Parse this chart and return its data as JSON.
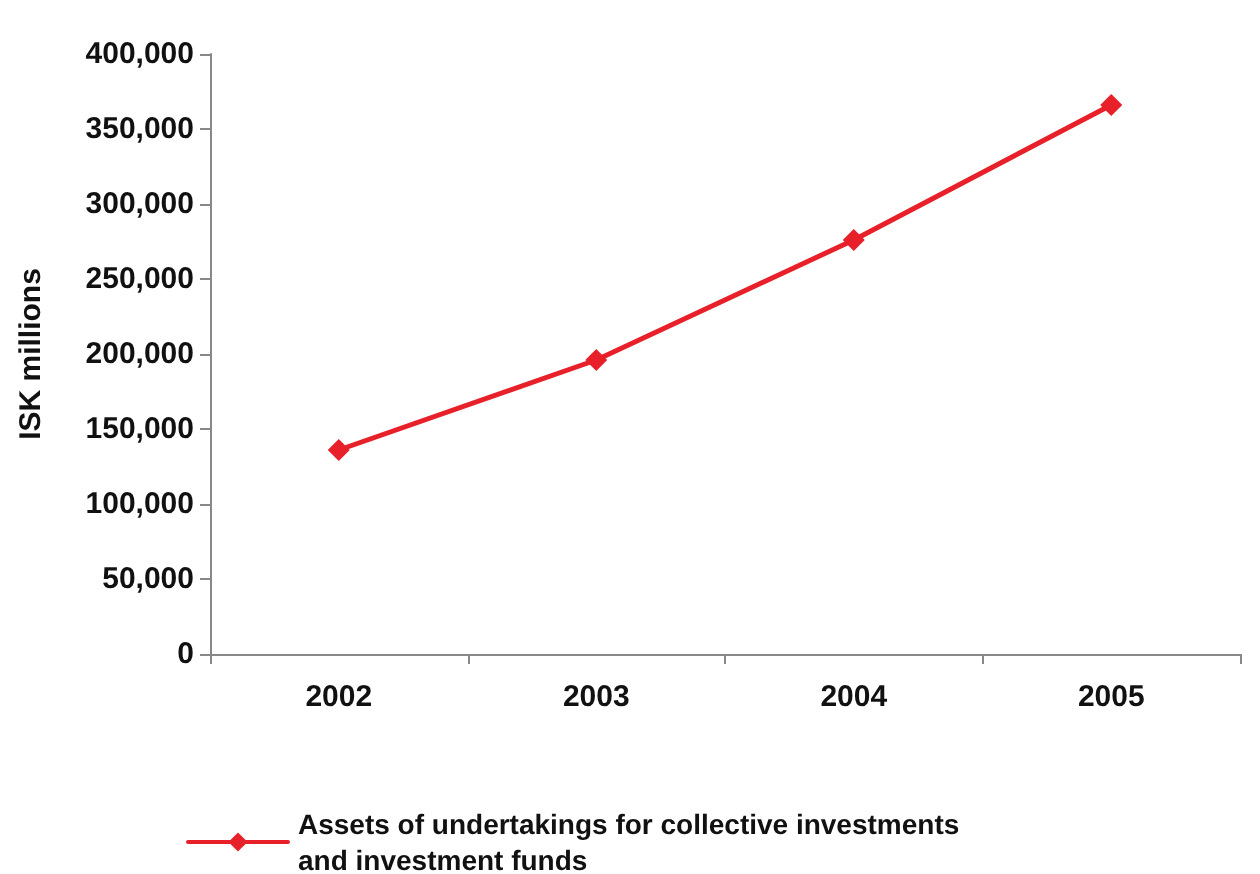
{
  "chart_data": {
    "type": "line",
    "ylabel": "ISK millions",
    "categories": [
      "2002",
      "2003",
      "2004",
      "2005"
    ],
    "series": [
      {
        "name": "Assets of undertakings for collective investments and investment funds",
        "color": "#e8202a",
        "values": [
          136000,
          196000,
          276000,
          366000
        ]
      }
    ],
    "ylim": [
      0,
      400000
    ],
    "yticks": [
      0,
      {
        "value": 50000,
        "label": "50,000"
      },
      {
        "value": 100000,
        "label": "100,000"
      },
      {
        "value": 150000,
        "label": "150,000"
      },
      {
        "value": 200000,
        "label": "200,000"
      },
      {
        "value": 250000,
        "label": "250,000"
      },
      {
        "value": 300000,
        "label": "300,000"
      },
      {
        "value": 350000,
        "label": "350,000"
      },
      {
        "value": 400000,
        "label": "400,000"
      }
    ],
    "grid": false,
    "legend": "bottom left",
    "marker": "diamond",
    "line_style": "solid"
  }
}
